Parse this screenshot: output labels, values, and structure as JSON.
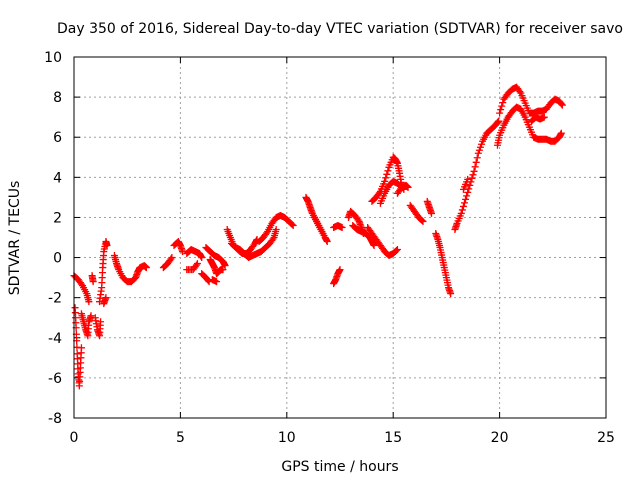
{
  "chart_data": {
    "type": "scatter",
    "title": "Day 350 of 2016, Sidereal Day-to-day VTEC variation (SDTVAR) for receiver savo",
    "xlabel": "GPS time / hours",
    "ylabel": "SDTVAR / TECUs",
    "xlim": [
      0,
      25
    ],
    "ylim": [
      -8,
      10
    ],
    "xticks": [
      "0",
      "5",
      "10",
      "15",
      "20",
      "25"
    ],
    "yticks": [
      "-8",
      "-6",
      "-4",
      "-2",
      "0",
      "2",
      "4",
      "6",
      "8",
      "10"
    ],
    "grid": true,
    "marker": "+",
    "color": "#ff0000",
    "series": [
      {
        "name": "SDTVAR",
        "segments": [
          [
            [
              0.0,
              -0.9
            ],
            [
              0.2,
              -1.1
            ],
            [
              0.4,
              -1.4
            ],
            [
              0.6,
              -1.8
            ],
            [
              0.7,
              -2.2
            ]
          ],
          [
            [
              0.05,
              -2.5
            ],
            [
              0.1,
              -3.5
            ],
            [
              0.15,
              -4.8
            ],
            [
              0.2,
              -5.8
            ],
            [
              0.25,
              -6.4
            ],
            [
              0.3,
              -5.5
            ],
            [
              0.35,
              -4.5
            ]
          ],
          [
            [
              0.35,
              -2.8
            ],
            [
              0.45,
              -3.2
            ],
            [
              0.55,
              -3.6
            ],
            [
              0.65,
              -3.9
            ],
            [
              0.7,
              -3.2
            ],
            [
              0.8,
              -2.9
            ]
          ],
          [
            [
              0.85,
              -0.9
            ],
            [
              0.9,
              -1.2
            ]
          ],
          [
            [
              1.0,
              -3.0
            ],
            [
              1.1,
              -3.6
            ],
            [
              1.2,
              -3.9
            ],
            [
              1.25,
              -3.2
            ]
          ],
          [
            [
              1.2,
              -2.2
            ],
            [
              1.3,
              -1.5
            ],
            [
              1.35,
              -0.5
            ],
            [
              1.4,
              0.3
            ],
            [
              1.5,
              0.8
            ],
            [
              1.55,
              0.6
            ]
          ],
          [
            [
              1.4,
              -2.3
            ],
            [
              1.5,
              -2.0
            ]
          ],
          [
            [
              1.9,
              0.1
            ],
            [
              2.0,
              -0.3
            ],
            [
              2.1,
              -0.6
            ],
            [
              2.3,
              -1.0
            ],
            [
              2.5,
              -1.2
            ],
            [
              2.7,
              -1.2
            ],
            [
              2.9,
              -1.0
            ],
            [
              3.0,
              -0.7
            ],
            [
              3.1,
              -0.5
            ],
            [
              3.3,
              -0.4
            ],
            [
              3.4,
              -0.5
            ]
          ],
          [
            [
              4.2,
              -0.5
            ],
            [
              4.4,
              -0.3
            ],
            [
              4.6,
              0.0
            ]
          ],
          [
            [
              4.7,
              0.6
            ],
            [
              4.9,
              0.8
            ],
            [
              5.0,
              0.6
            ],
            [
              5.1,
              0.3
            ]
          ],
          [
            [
              5.3,
              0.2
            ],
            [
              5.5,
              0.4
            ],
            [
              5.7,
              0.3
            ],
            [
              5.9,
              0.2
            ],
            [
              6.0,
              0.0
            ]
          ],
          [
            [
              5.3,
              -0.6
            ],
            [
              5.6,
              -0.6
            ],
            [
              5.8,
              -0.3
            ]
          ],
          [
            [
              6.0,
              -0.8
            ],
            [
              6.2,
              -1.0
            ],
            [
              6.35,
              -1.2
            ]
          ],
          [
            [
              6.4,
              -0.1
            ],
            [
              6.5,
              -0.3
            ],
            [
              6.6,
              -0.5
            ],
            [
              6.7,
              -0.8
            ],
            [
              6.8,
              -0.7
            ],
            [
              6.9,
              -0.6
            ],
            [
              7.0,
              -0.6
            ]
          ],
          [
            [
              6.5,
              -1.1
            ],
            [
              6.7,
              -1.2
            ]
          ],
          [
            [
              6.2,
              0.5
            ],
            [
              6.4,
              0.3
            ],
            [
              6.6,
              0.1
            ],
            [
              6.8,
              0.0
            ],
            [
              7.0,
              -0.2
            ],
            [
              7.1,
              -0.4
            ]
          ],
          [
            [
              7.2,
              1.4
            ],
            [
              7.35,
              1.0
            ],
            [
              7.5,
              0.6
            ],
            [
              7.7,
              0.4
            ],
            [
              7.9,
              0.2
            ],
            [
              8.1,
              0.2
            ],
            [
              8.3,
              0.4
            ],
            [
              8.5,
              0.7
            ],
            [
              8.6,
              0.9
            ]
          ],
          [
            [
              7.4,
              0.7
            ],
            [
              7.6,
              0.5
            ],
            [
              7.8,
              0.4
            ],
            [
              8.0,
              0.2
            ],
            [
              8.2,
              0.0
            ],
            [
              8.4,
              0.1
            ],
            [
              8.6,
              0.2
            ],
            [
              8.8,
              0.3
            ],
            [
              9.0,
              0.5
            ],
            [
              9.2,
              0.7
            ],
            [
              9.4,
              1.0
            ],
            [
              9.5,
              1.4
            ]
          ],
          [
            [
              8.7,
              0.8
            ],
            [
              8.9,
              1.0
            ],
            [
              9.1,
              1.3
            ],
            [
              9.3,
              1.7
            ],
            [
              9.5,
              2.0
            ],
            [
              9.7,
              2.1
            ],
            [
              9.9,
              2.0
            ],
            [
              10.1,
              1.8
            ],
            [
              10.3,
              1.6
            ]
          ],
          [
            [
              10.9,
              3.0
            ],
            [
              11.0,
              2.8
            ],
            [
              11.1,
              2.5
            ],
            [
              11.2,
              2.2
            ],
            [
              11.4,
              1.8
            ],
            [
              11.6,
              1.4
            ],
            [
              11.8,
              1.0
            ],
            [
              11.9,
              0.8
            ]
          ],
          [
            [
              11.3,
              2.0
            ],
            [
              11.5,
              1.6
            ],
            [
              11.7,
              1.2
            ]
          ],
          [
            [
              12.2,
              1.5
            ],
            [
              12.4,
              1.6
            ],
            [
              12.6,
              1.5
            ]
          ],
          [
            [
              12.2,
              -1.3
            ],
            [
              12.3,
              -1.1
            ],
            [
              12.4,
              -0.8
            ],
            [
              12.5,
              -0.6
            ]
          ],
          [
            [
              12.9,
              2.0
            ],
            [
              13.0,
              2.3
            ],
            [
              13.2,
              2.1
            ],
            [
              13.4,
              1.8
            ],
            [
              13.5,
              1.5
            ],
            [
              13.6,
              1.2
            ]
          ],
          [
            [
              13.1,
              1.6
            ],
            [
              13.3,
              1.4
            ],
            [
              13.5,
              1.3
            ],
            [
              13.7,
              1.2
            ],
            [
              13.9,
              1.0
            ],
            [
              14.0,
              0.8
            ],
            [
              14.1,
              0.6
            ]
          ],
          [
            [
              13.8,
              1.5
            ],
            [
              14.0,
              1.2
            ],
            [
              14.2,
              0.9
            ],
            [
              14.4,
              0.6
            ],
            [
              14.6,
              0.3
            ],
            [
              14.8,
              0.1
            ],
            [
              15.0,
              0.2
            ],
            [
              15.2,
              0.4
            ]
          ],
          [
            [
              14.0,
              2.8
            ],
            [
              14.2,
              3.0
            ],
            [
              14.4,
              3.3
            ],
            [
              14.6,
              3.8
            ],
            [
              14.8,
              4.5
            ],
            [
              15.0,
              5.0
            ],
            [
              15.1,
              4.9
            ],
            [
              15.2,
              4.7
            ],
            [
              15.3,
              4.2
            ],
            [
              15.4,
              3.6
            ],
            [
              15.5,
              3.4
            ]
          ],
          [
            [
              14.4,
              2.7
            ],
            [
              14.6,
              3.2
            ],
            [
              14.8,
              3.6
            ],
            [
              15.0,
              3.8
            ],
            [
              15.2,
              3.7
            ],
            [
              15.4,
              3.5
            ]
          ],
          [
            [
              15.2,
              3.2
            ],
            [
              15.4,
              3.5
            ],
            [
              15.6,
              3.6
            ],
            [
              15.7,
              3.5
            ]
          ],
          [
            [
              15.8,
              2.6
            ],
            [
              16.0,
              2.3
            ],
            [
              16.2,
              2.0
            ],
            [
              16.4,
              1.8
            ]
          ],
          [
            [
              16.6,
              2.8
            ],
            [
              16.7,
              2.5
            ],
            [
              16.8,
              2.2
            ]
          ],
          [
            [
              17.0,
              1.2
            ],
            [
              17.1,
              0.9
            ],
            [
              17.2,
              0.5
            ],
            [
              17.3,
              0.0
            ],
            [
              17.4,
              -0.5
            ],
            [
              17.5,
              -1.0
            ],
            [
              17.6,
              -1.5
            ],
            [
              17.7,
              -1.8
            ]
          ],
          [
            [
              17.9,
              1.4
            ],
            [
              18.0,
              1.7
            ],
            [
              18.2,
              2.2
            ],
            [
              18.4,
              2.9
            ],
            [
              18.6,
              3.6
            ],
            [
              18.8,
              4.3
            ],
            [
              19.0,
              5.2
            ],
            [
              19.2,
              5.8
            ],
            [
              19.4,
              6.2
            ],
            [
              19.6,
              6.4
            ],
            [
              19.8,
              6.6
            ],
            [
              19.95,
              6.8
            ]
          ],
          [
            [
              18.3,
              3.4
            ],
            [
              18.5,
              3.9
            ]
          ],
          [
            [
              19.9,
              5.6
            ],
            [
              20.0,
              6.1
            ],
            [
              20.2,
              6.6
            ],
            [
              20.4,
              7.0
            ],
            [
              20.6,
              7.3
            ],
            [
              20.8,
              7.5
            ],
            [
              21.0,
              7.4
            ],
            [
              21.2,
              7.0
            ],
            [
              21.4,
              6.5
            ],
            [
              21.6,
              6.0
            ],
            [
              21.8,
              5.9
            ],
            [
              22.0,
              5.9
            ],
            [
              22.2,
              5.9
            ],
            [
              22.4,
              5.8
            ],
            [
              22.6,
              5.8
            ],
            [
              22.8,
              6.0
            ],
            [
              22.9,
              6.2
            ]
          ],
          [
            [
              20.0,
              7.2
            ],
            [
              20.2,
              7.9
            ],
            [
              20.4,
              8.2
            ],
            [
              20.6,
              8.4
            ],
            [
              20.8,
              8.5
            ],
            [
              21.0,
              8.2
            ],
            [
              21.2,
              7.7
            ],
            [
              21.4,
              7.2
            ],
            [
              21.6,
              7.2
            ],
            [
              21.8,
              7.3
            ],
            [
              22.0,
              7.3
            ],
            [
              22.2,
              7.4
            ],
            [
              22.4,
              7.7
            ],
            [
              22.6,
              7.9
            ],
            [
              22.8,
              7.8
            ],
            [
              22.95,
              7.6
            ]
          ],
          [
            [
              21.5,
              6.8
            ],
            [
              21.7,
              7.0
            ],
            [
              21.9,
              6.9
            ],
            [
              22.1,
              7.0
            ]
          ]
        ]
      }
    ]
  }
}
